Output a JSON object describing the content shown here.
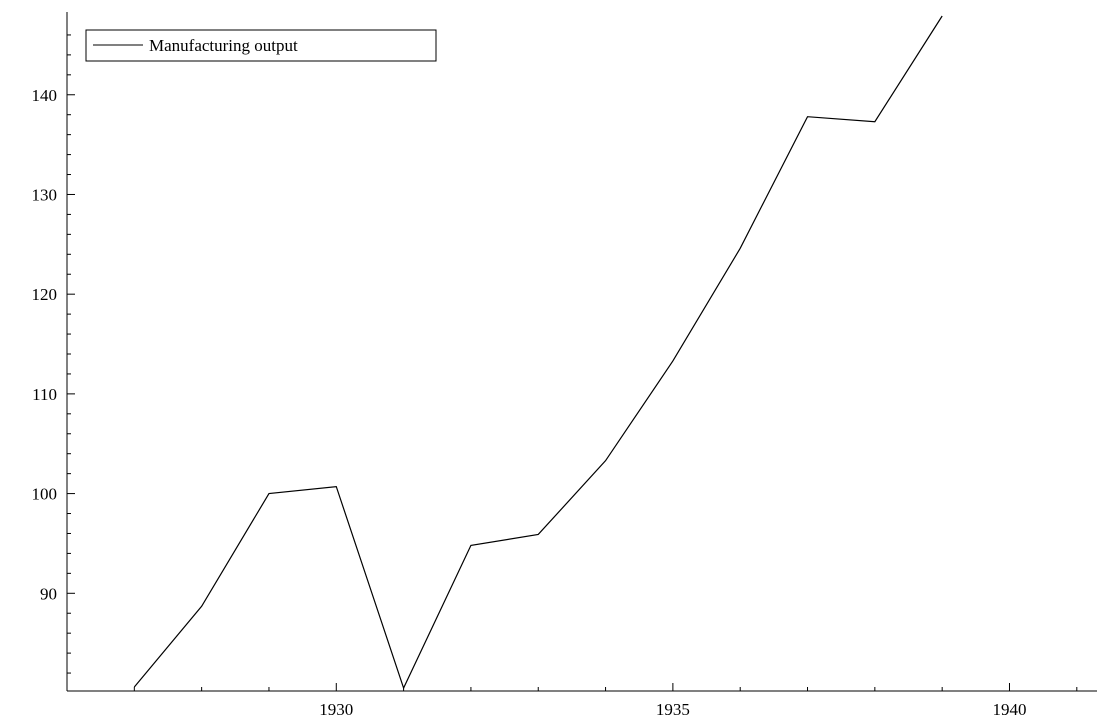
{
  "chart_data": {
    "type": "line",
    "title": "",
    "xlabel": "",
    "ylabel": "",
    "xlim": [
      1926.0,
      1941.3
    ],
    "ylim": [
      80.2,
      147.9
    ],
    "x_ticks": [
      1930,
      1935,
      1940
    ],
    "y_ticks": [
      90,
      100,
      110,
      120,
      130,
      140
    ],
    "grid": false,
    "legend_position": "top-left",
    "line_color": "#000000",
    "series": [
      {
        "name": "Manufacturing output",
        "x": [
          1927,
          1928,
          1929,
          1930,
          1931,
          1932,
          1933,
          1934,
          1935,
          1936,
          1937,
          1938,
          1939
        ],
        "y": [
          80.6,
          88.7,
          100.0,
          100.7,
          80.5,
          94.8,
          95.9,
          103.3,
          113.3,
          124.6,
          137.8,
          137.3,
          147.9
        ]
      }
    ]
  }
}
